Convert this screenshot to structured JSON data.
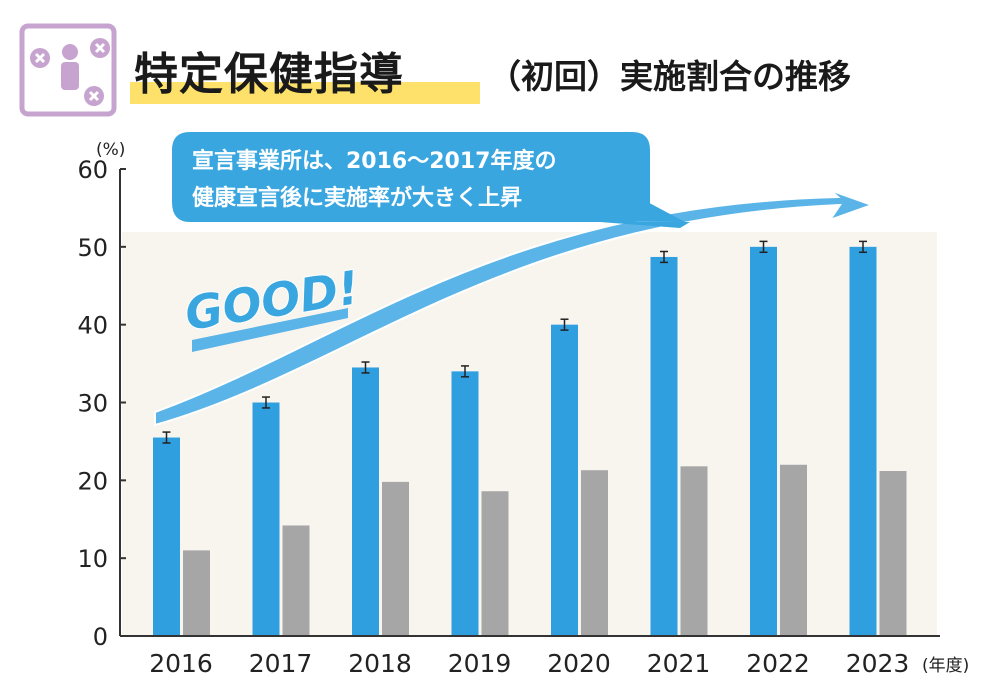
{
  "title": {
    "main": "特定保健指導",
    "sub": "（初回）実施割合の推移"
  },
  "annotation": {
    "line1": "宣言事業所は、2016〜2017年度の",
    "line2": "健康宣言後に実施率が大きく上昇",
    "good": "GOOD!"
  },
  "colors": {
    "blue": "#2f9fe0",
    "gray": "#a6a6a6",
    "highlight": "#fde16a",
    "icon": "#c7a3cf"
  },
  "chart_data": {
    "type": "bar",
    "categories": [
      "2016",
      "2017",
      "2018",
      "2019",
      "2020",
      "2021",
      "2022",
      "2023"
    ],
    "series": [
      {
        "values": [
          25.5,
          30.0,
          34.5,
          34.0,
          40.0,
          48.7,
          50.0,
          50.0
        ],
        "color": "#2f9fe0",
        "error_bars": true
      },
      {
        "values": [
          11.0,
          14.2,
          19.8,
          18.6,
          21.3,
          21.8,
          22.0,
          21.2
        ],
        "color": "#a6a6a6"
      }
    ],
    "ylim": [
      0,
      60
    ],
    "yticks": [
      0,
      10,
      20,
      30,
      40,
      50,
      60
    ],
    "yunit": "(%)",
    "xunit": "(年度)",
    "grid": false
  }
}
